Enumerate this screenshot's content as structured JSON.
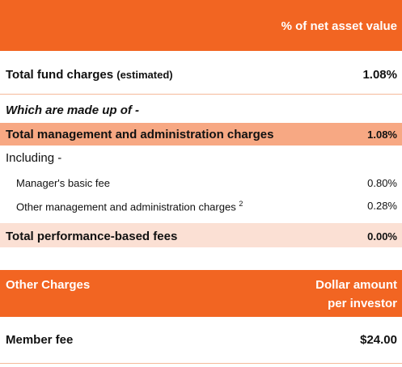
{
  "header": {
    "column_label": "% of net asset value"
  },
  "total_fund": {
    "label": "Total fund charges",
    "qualifier": "(estimated)",
    "value": "1.08%"
  },
  "made_up_of": {
    "label": "Which are made up of -"
  },
  "total_mgmt": {
    "label": "Total management and administration charges",
    "value": "1.08%"
  },
  "including": {
    "label": "Including -"
  },
  "managers_fee": {
    "label": "Manager's basic fee",
    "value": "0.80%"
  },
  "other_mgmt": {
    "label": "Other management and administration charges",
    "footnote": "2",
    "value": "0.28%"
  },
  "perf_fees": {
    "label": "Total performance-based fees",
    "value": "0.00%"
  },
  "other_charges": {
    "label": "Other Charges",
    "column_label_line1": "Dollar amount",
    "column_label_line2": "per investor"
  },
  "member_fee": {
    "label": "Member fee",
    "value": "$24.00"
  },
  "colors": {
    "orange": "#f26522",
    "salmon": "#f7a883",
    "peach": "#fbe0d4"
  }
}
